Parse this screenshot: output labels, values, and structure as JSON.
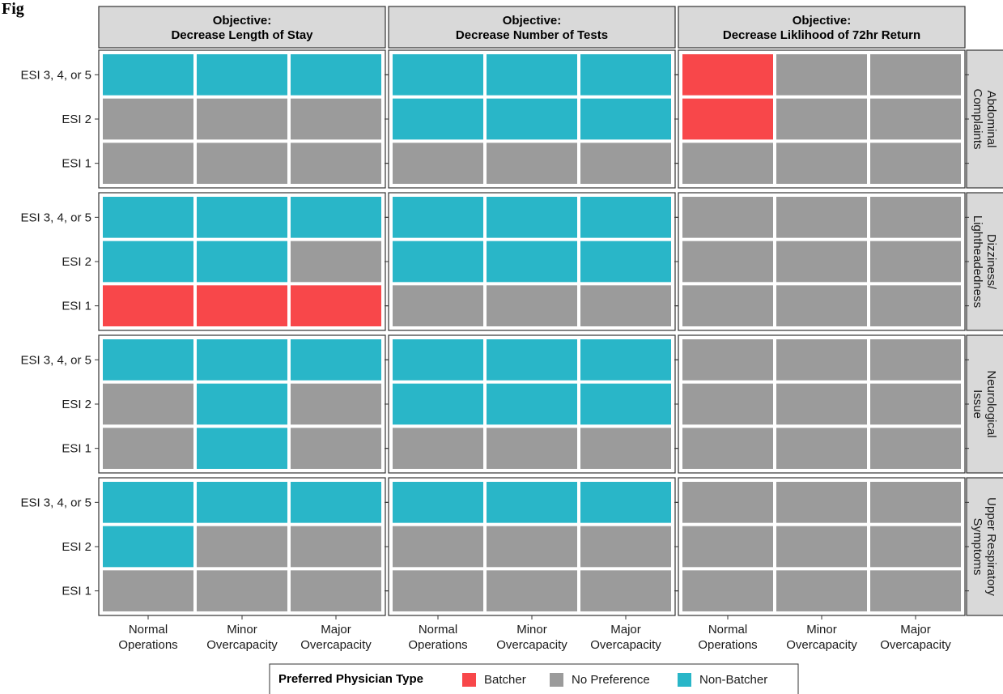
{
  "figure_label": "Fig",
  "colors": {
    "Batcher": "#F8474A",
    "No Preference": "#9B9B9B",
    "Non-Batcher": "#29B6C8",
    "strip_bg": "#D9D9D9",
    "strip_border": "#333333"
  },
  "chart_data": {
    "type": "heatmap",
    "columns": [
      "Objective:\nDecrease Length of Stay",
      "Objective:\nDecrease Number of Tests",
      "Objective:\nDecrease Liklihood of 72hr Return"
    ],
    "rows": [
      "Abdominal\nComplaints",
      "Dizziness/\nLightheadedness",
      "Neurological\nIssue",
      "Upper Respiratory\nSymptoms"
    ],
    "x_categories": [
      "Normal\nOperations",
      "Minor\nOvercapacity",
      "Major\nOvercapacity"
    ],
    "y_categories": [
      "ESI 3, 4, or 5",
      "ESI 2",
      "ESI 1"
    ],
    "legend": {
      "title": "Preferred Physician Type",
      "entries": [
        "Batcher",
        "No Preference",
        "Non-Batcher"
      ],
      "position": "bottom"
    },
    "cells": [
      [
        [
          [
            "Non-Batcher",
            "Non-Batcher",
            "Non-Batcher"
          ],
          [
            "No Preference",
            "No Preference",
            "No Preference"
          ],
          [
            "No Preference",
            "No Preference",
            "No Preference"
          ]
        ],
        [
          [
            "Non-Batcher",
            "Non-Batcher",
            "Non-Batcher"
          ],
          [
            "Non-Batcher",
            "Non-Batcher",
            "Non-Batcher"
          ],
          [
            "No Preference",
            "No Preference",
            "No Preference"
          ]
        ],
        [
          [
            "Batcher",
            "No Preference",
            "No Preference"
          ],
          [
            "Batcher",
            "No Preference",
            "No Preference"
          ],
          [
            "No Preference",
            "No Preference",
            "No Preference"
          ]
        ]
      ],
      [
        [
          [
            "Non-Batcher",
            "Non-Batcher",
            "Non-Batcher"
          ],
          [
            "Non-Batcher",
            "Non-Batcher",
            "No Preference"
          ],
          [
            "Batcher",
            "Batcher",
            "Batcher"
          ]
        ],
        [
          [
            "Non-Batcher",
            "Non-Batcher",
            "Non-Batcher"
          ],
          [
            "Non-Batcher",
            "Non-Batcher",
            "Non-Batcher"
          ],
          [
            "No Preference",
            "No Preference",
            "No Preference"
          ]
        ],
        [
          [
            "No Preference",
            "No Preference",
            "No Preference"
          ],
          [
            "No Preference",
            "No Preference",
            "No Preference"
          ],
          [
            "No Preference",
            "No Preference",
            "No Preference"
          ]
        ]
      ],
      [
        [
          [
            "Non-Batcher",
            "Non-Batcher",
            "Non-Batcher"
          ],
          [
            "No Preference",
            "Non-Batcher",
            "No Preference"
          ],
          [
            "No Preference",
            "Non-Batcher",
            "No Preference"
          ]
        ],
        [
          [
            "Non-Batcher",
            "Non-Batcher",
            "Non-Batcher"
          ],
          [
            "Non-Batcher",
            "Non-Batcher",
            "Non-Batcher"
          ],
          [
            "No Preference",
            "No Preference",
            "No Preference"
          ]
        ],
        [
          [
            "No Preference",
            "No Preference",
            "No Preference"
          ],
          [
            "No Preference",
            "No Preference",
            "No Preference"
          ],
          [
            "No Preference",
            "No Preference",
            "No Preference"
          ]
        ]
      ],
      [
        [
          [
            "Non-Batcher",
            "Non-Batcher",
            "Non-Batcher"
          ],
          [
            "Non-Batcher",
            "No Preference",
            "No Preference"
          ],
          [
            "No Preference",
            "No Preference",
            "No Preference"
          ]
        ],
        [
          [
            "Non-Batcher",
            "Non-Batcher",
            "Non-Batcher"
          ],
          [
            "No Preference",
            "No Preference",
            "No Preference"
          ],
          [
            "No Preference",
            "No Preference",
            "No Preference"
          ]
        ],
        [
          [
            "No Preference",
            "No Preference",
            "No Preference"
          ],
          [
            "No Preference",
            "No Preference",
            "No Preference"
          ],
          [
            "No Preference",
            "No Preference",
            "No Preference"
          ]
        ]
      ]
    ]
  }
}
